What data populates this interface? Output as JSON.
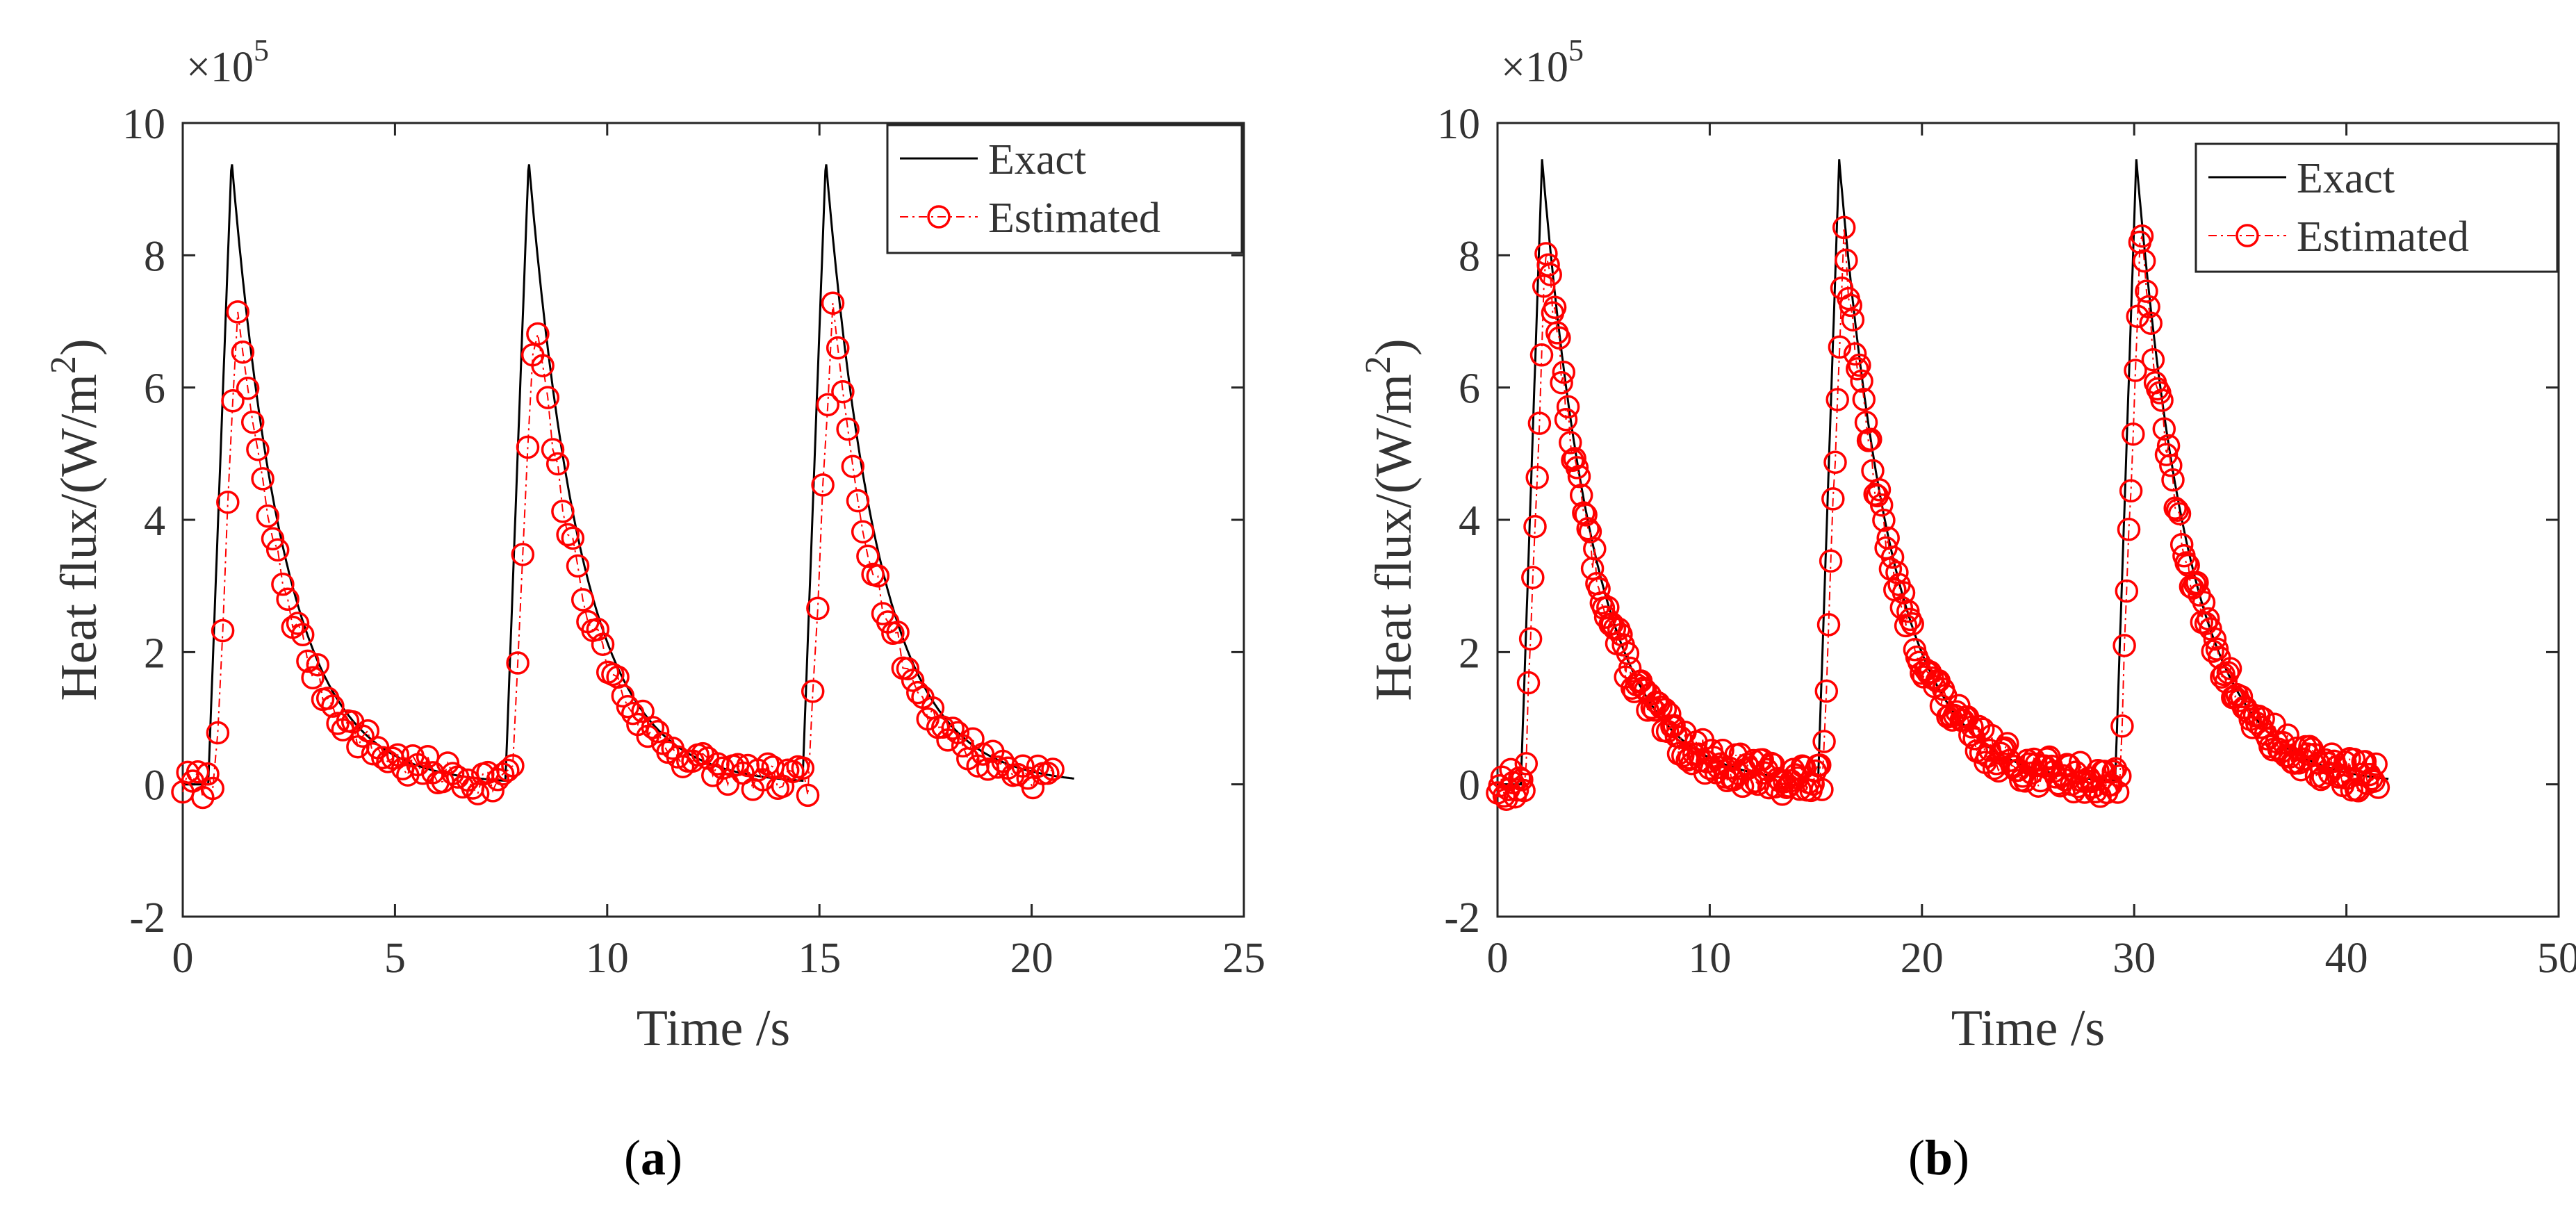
{
  "colors": {
    "exact": "#000000",
    "estimated": "#ff0000",
    "axis": "#262626",
    "text": "#333333"
  },
  "chart_data": [
    {
      "type": "line",
      "panel_label": "a",
      "xlabel": "Time /s",
      "ylabel": "Heat flux/(W/m²)",
      "ylabel_base": "Heat flux/(W/m",
      "ylabel_sup": "2",
      "ylabel_end": ")",
      "y_exponent_prefix": "×10",
      "y_exponent_power": "5",
      "xlim": [
        0,
        25
      ],
      "ylim": [
        -2,
        10
      ],
      "xticks": [
        0,
        5,
        10,
        15,
        20,
        25
      ],
      "xticklabels": [
        "0",
        "5",
        "10",
        "15",
        "20",
        "25"
      ],
      "yticks": [
        -2,
        0,
        2,
        4,
        6,
        8,
        10
      ],
      "yticklabels": [
        "-2",
        "0",
        "2",
        "4",
        "6",
        "8",
        "10"
      ],
      "legend": {
        "position": "top-right",
        "entries": [
          "Exact",
          "Estimated"
        ]
      },
      "exact_params": {
        "period": 7,
        "first_start": 0.6,
        "rise": 0.55,
        "peak": 9.45,
        "decay_tau": 1.25,
        "end": 21
      },
      "estimated_params": {
        "scale": 0.76,
        "delay": 0.15,
        "t_start": 0,
        "t_end": 20.5,
        "n": 175,
        "noise": 0.22,
        "seed": 7
      },
      "series": [
        {
          "name": "Exact",
          "peak_times": [
            1.15,
            8.15,
            15.15
          ],
          "peak_value": 9.45
        },
        {
          "name": "Estimated",
          "peak_times": [
            1.3,
            8.3,
            15.3
          ],
          "peak_value": 7.2
        }
      ]
    },
    {
      "type": "line",
      "panel_label": "b",
      "xlabel": "Time /s",
      "ylabel": "Heat flux/(W/m²)",
      "ylabel_base": "Heat flux/(W/m",
      "ylabel_sup": "2",
      "ylabel_end": ")",
      "y_exponent_prefix": "×10",
      "y_exponent_power": "5",
      "xlim": [
        0,
        50
      ],
      "ylim": [
        -2,
        10
      ],
      "xticks": [
        0,
        10,
        20,
        30,
        40,
        50
      ],
      "xticklabels": [
        "0",
        "10",
        "20",
        "30",
        "40",
        "50"
      ],
      "yticks": [
        -2,
        0,
        2,
        4,
        6,
        8,
        10
      ],
      "yticklabels": [
        "-2",
        "0",
        "2",
        "4",
        "6",
        "8",
        "10"
      ],
      "legend": {
        "position": "top-right",
        "entries": [
          "Exact",
          "Estimated"
        ]
      },
      "exact_params": {
        "period": 14,
        "first_start": 1.1,
        "rise": 1.0,
        "peak": 9.45,
        "decay_tau": 2.5,
        "end": 42
      },
      "estimated_params": {
        "scale": 0.88,
        "delay": 0.2,
        "t_start": 0,
        "t_end": 41.5,
        "n": 400,
        "noise": 0.25,
        "seed": 13
      },
      "series": [
        {
          "name": "Exact",
          "peak_times": [
            2.1,
            16.1,
            30.1
          ],
          "peak_value": 9.45
        },
        {
          "name": "Estimated",
          "peak_times": [
            2.3,
            16.3,
            30.3
          ],
          "peak_value": 8.4
        }
      ]
    }
  ]
}
